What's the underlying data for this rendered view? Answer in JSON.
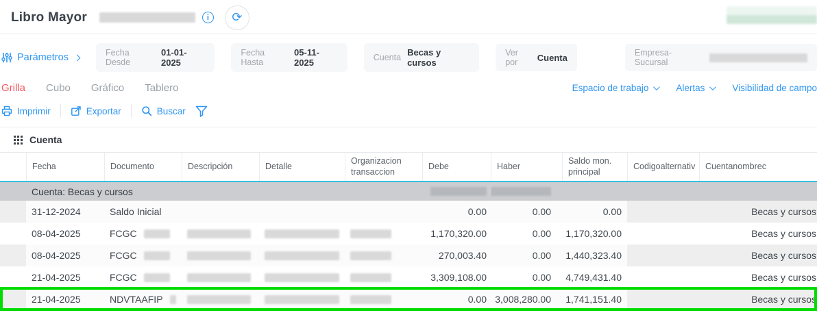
{
  "header": {
    "title": "Libro Mayor",
    "accent_color": "#2f96f3",
    "icons": [
      "info-icon",
      "refresh-icon"
    ],
    "refresh_glyph": "⟳"
  },
  "filters": {
    "params_label": "Parámetros",
    "chips": [
      {
        "label": "Fecha Desde",
        "value": "01-01-2025"
      },
      {
        "label": "Fecha Hasta",
        "value": "05-11-2025"
      },
      {
        "label": "Cuenta",
        "value": "Becas y cursos"
      },
      {
        "label": "Ver por",
        "value": "Cuenta"
      },
      {
        "label": "Empresa-Sucursal",
        "value": "",
        "redacted": true
      }
    ]
  },
  "tabs": [
    {
      "label": "Grilla",
      "active": true
    },
    {
      "label": "Cubo",
      "active": false
    },
    {
      "label": "Gráfico",
      "active": false
    },
    {
      "label": "Tablero",
      "active": false
    }
  ],
  "tab_active_color": "#f4575e",
  "view_links": [
    {
      "label": "Espacio de trabajo",
      "dropdown": true
    },
    {
      "label": "Alertas",
      "dropdown": true
    },
    {
      "label": "Visibilidad de campo",
      "dropdown": false
    }
  ],
  "toolbar": {
    "print_label": "Imprimir",
    "export_label": "Exportar",
    "search_label": "Buscar"
  },
  "grouping": {
    "label": "Cuenta"
  },
  "table": {
    "header_underline_color": "#35c0e0",
    "highlight_color": "#00dc00",
    "columns": [
      "",
      "Fecha",
      "Documento",
      "Descripción",
      "Detalle",
      "Organizacion transaccion",
      "Debe",
      "Haber",
      "Saldo mon. principal",
      "Codigoalternativ",
      "Cuentanombrec"
    ],
    "group_row": {
      "label": "Cuenta: Becas y cursos",
      "debe_redacted": true,
      "haber_redacted": true
    },
    "rows": [
      {
        "fecha": "31-12-2024",
        "documento": "Saldo Inicial",
        "documento_redacted": false,
        "descripcion_redacted": false,
        "debe": "0.00",
        "haber": "0.00",
        "saldo": "0.00",
        "codigo": "",
        "cuenta": "Becas y cursos",
        "shaded": true,
        "highlighted": false
      },
      {
        "fecha": "08-04-2025",
        "documento": "FCGC",
        "documento_redacted": true,
        "descripcion_redacted": true,
        "debe": "1,170,320.00",
        "haber": "0.00",
        "saldo": "1,170,320.00",
        "codigo": "",
        "cuenta": "Becas y cursos",
        "shaded": false,
        "highlighted": false
      },
      {
        "fecha": "08-04-2025",
        "documento": "FCGC",
        "documento_redacted": true,
        "descripcion_redacted": true,
        "debe": "270,003.40",
        "haber": "0.00",
        "saldo": "1,440,323.40",
        "codigo": "",
        "cuenta": "Becas y cursos",
        "shaded": true,
        "highlighted": false
      },
      {
        "fecha": "21-04-2025",
        "documento": "FCGC",
        "documento_redacted": true,
        "descripcion_redacted": true,
        "debe": "3,309,108.00",
        "haber": "0.00",
        "saldo": "4,749,431.40",
        "codigo": "",
        "cuenta": "Becas y cursos",
        "shaded": false,
        "highlighted": false
      },
      {
        "fecha": "21-04-2025",
        "documento": "NDVTAAFIP",
        "documento_redacted": true,
        "descripcion_redacted": true,
        "debe": "0.00",
        "haber": "3,008,280.00",
        "saldo": "1,741,151.40",
        "codigo": "",
        "cuenta": "Becas y cursos",
        "shaded": true,
        "highlighted": true
      }
    ]
  }
}
